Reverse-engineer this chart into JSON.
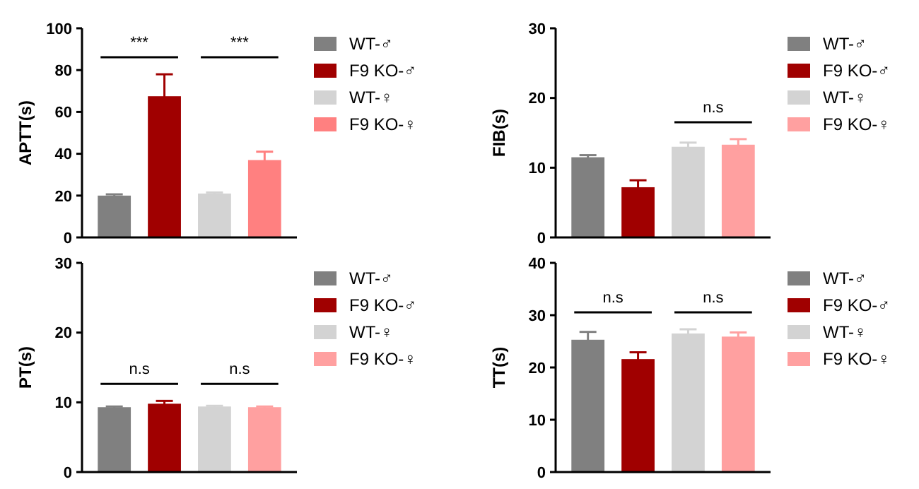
{
  "chart_data": [
    {
      "type": "bar",
      "ylabel": "APTT(s)",
      "categories": [
        null
      ],
      "ylim": [
        0,
        100
      ],
      "yticks": [
        0,
        20,
        40,
        60,
        80,
        100
      ],
      "tick_labels": "y",
      "legend": "right",
      "annotations": [
        "***",
        "***"
      ],
      "series": [
        {
          "name": "WT-♂",
          "color": "#808080",
          "values": [
            20
          ],
          "errors": [
            0.6
          ]
        },
        {
          "name": "F9 KO-♂",
          "color": "#a00000",
          "values": [
            67.5
          ],
          "errors": [
            10.5
          ]
        },
        {
          "name": "WT-♀",
          "color": "#d3d3d3",
          "values": [
            21
          ],
          "errors": [
            0.5
          ]
        },
        {
          "name": "F9 KO-♀",
          "color": "#ff8080",
          "values": [
            37
          ],
          "errors": [
            4
          ]
        }
      ]
    },
    {
      "type": "bar",
      "ylabel": "FIB(s)",
      "categories": [
        null
      ],
      "ylim": [
        0,
        30
      ],
      "yticks": [
        0,
        10,
        20,
        30
      ],
      "tick_labels": "y",
      "legend": "right",
      "annotations": [
        "n.s"
      ],
      "series": [
        {
          "name": "WT-♂",
          "color": "#808080",
          "values": [
            11.5
          ],
          "errors": [
            0.3
          ]
        },
        {
          "name": "F9 KO-♂",
          "color": "#a00000",
          "values": [
            7.2
          ],
          "errors": [
            1
          ]
        },
        {
          "name": "WT-♀",
          "color": "#d3d3d3",
          "values": [
            13
          ],
          "errors": [
            0.6
          ]
        },
        {
          "name": "F9 KO-♀",
          "color": "#ffa0a0",
          "values": [
            13.3
          ],
          "errors": [
            0.8
          ]
        }
      ]
    },
    {
      "type": "bar",
      "ylabel": "PT(s)",
      "categories": [
        null
      ],
      "ylim": [
        0,
        30
      ],
      "yticks": [
        0,
        10,
        20,
        30
      ],
      "tick_labels": "y",
      "legend": "right",
      "annotations": [
        "n.s",
        "n.s"
      ],
      "series": [
        {
          "name": "WT-♂",
          "color": "#808080",
          "values": [
            9.3
          ],
          "errors": [
            0.1
          ]
        },
        {
          "name": "F9 KO-♂",
          "color": "#a00000",
          "values": [
            9.8
          ],
          "errors": [
            0.4
          ]
        },
        {
          "name": "WT-♀",
          "color": "#d3d3d3",
          "values": [
            9.4
          ],
          "errors": [
            0.1
          ]
        },
        {
          "name": "F9 KO-♀",
          "color": "#ffa0a0",
          "values": [
            9.3
          ],
          "errors": [
            0.1
          ]
        }
      ]
    },
    {
      "type": "bar",
      "ylabel": "TT(s)",
      "categories": [
        null
      ],
      "ylim": [
        0,
        40
      ],
      "yticks": [
        0,
        10,
        20,
        30,
        40
      ],
      "tick_labels": "y",
      "legend": "right",
      "annotations": [
        "n.s",
        "n.s"
      ],
      "series": [
        {
          "name": "WT-♂",
          "color": "#808080",
          "values": [
            25.3
          ],
          "errors": [
            1.5
          ]
        },
        {
          "name": "F9 KO-♂",
          "color": "#a00000",
          "values": [
            21.6
          ],
          "errors": [
            1.3
          ]
        },
        {
          "name": "WT-♀",
          "color": "#d3d3d3",
          "values": [
            26.5
          ],
          "errors": [
            0.8
          ]
        },
        {
          "name": "F9 KO-♀",
          "color": "#ffa0a0",
          "values": [
            25.9
          ],
          "errors": [
            0.8
          ]
        }
      ]
    }
  ]
}
